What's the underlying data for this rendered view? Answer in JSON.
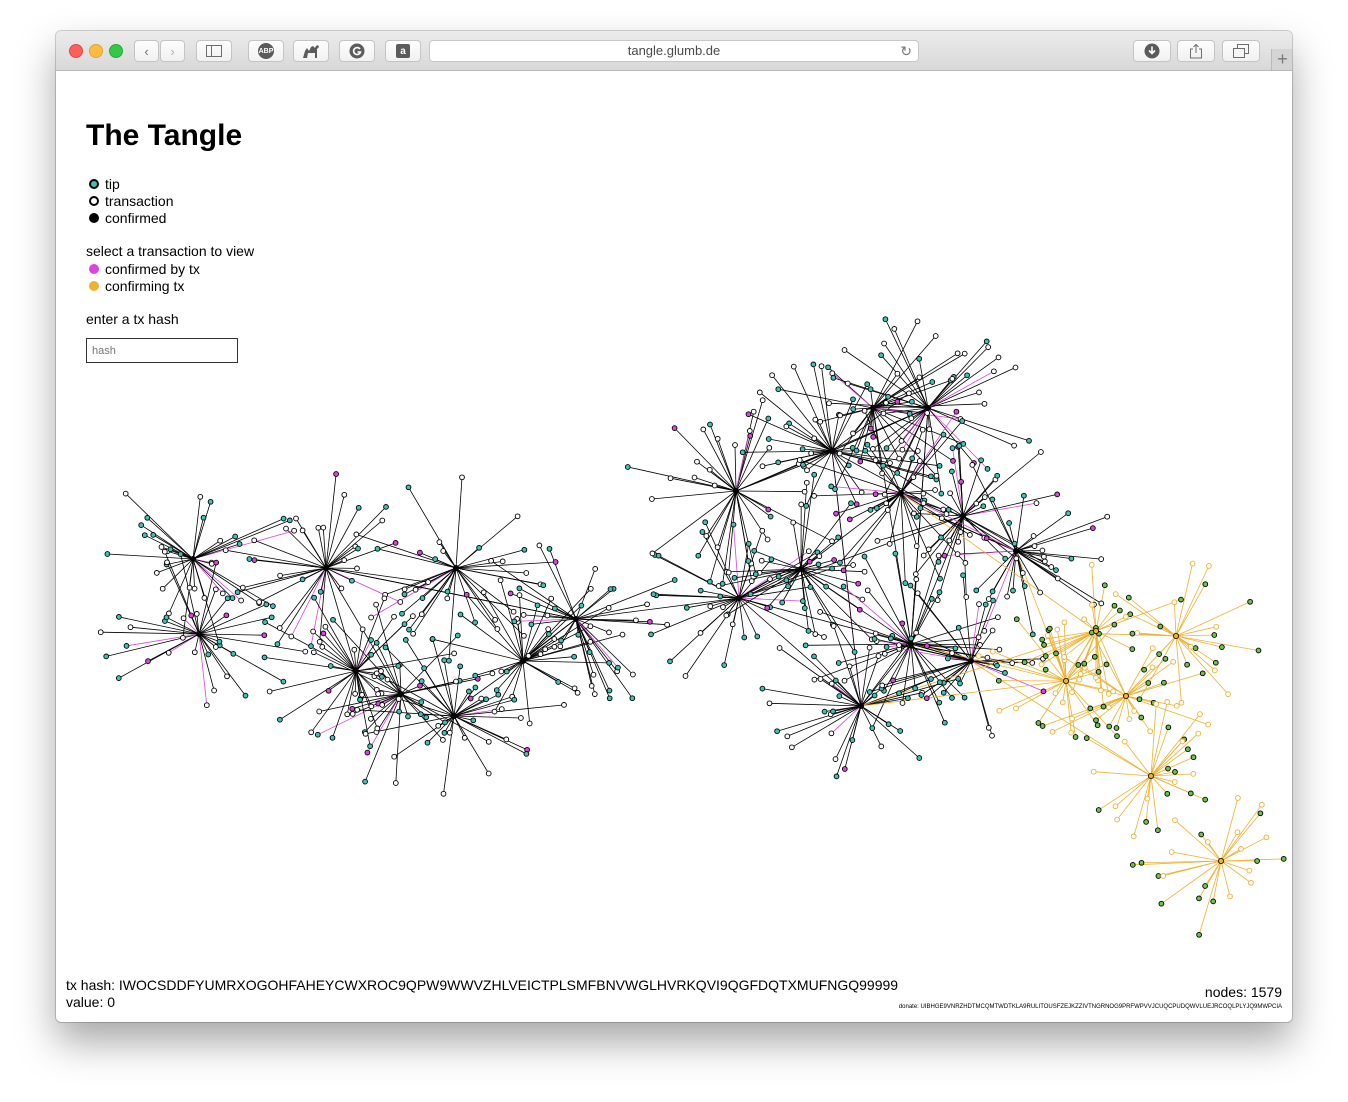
{
  "browser": {
    "url": "tangle.glumb.de",
    "buttons": {
      "back": "‹",
      "forward": "›",
      "adblock": "ABP",
      "amazon": "a",
      "newtab": "+"
    }
  },
  "page": {
    "title": "The Tangle",
    "legend": [
      {
        "label": "tip",
        "fill": "#3ec2b4",
        "stroke": "#000000"
      },
      {
        "label": "transaction",
        "fill": "#ffffff",
        "stroke": "#000000"
      },
      {
        "label": "confirmed",
        "fill": "#000000",
        "stroke": "#000000"
      }
    ],
    "select_prompt": "select a transaction to view",
    "highlight_legend": [
      {
        "label": "confirmed by tx",
        "color": "#dd44dd"
      },
      {
        "label": "confirming tx",
        "color": "#f0b030"
      }
    ],
    "hash_prompt": "enter a tx hash",
    "hash_input": {
      "placeholder": "hash",
      "value": ""
    },
    "tx_hash_line": "tx hash: IWOCSDDFYUMRXOGOHFAHEYCWXROC9QPW9WWVZHLVEICTPLSMFBNVWGLHVRKQVI9QGFDQTXMUFNGQ99999",
    "value_line": "value: 0",
    "nodes_line": "nodes: 1579",
    "donate_line": "donate: UIBHGE9VNRZHDTMCQMTWDTKLA9RULITOUSFZEJKZZIVTNGRNOG9PRFWPVVJCUQCPUDQWVLUEJRCOQLPLYJQ9MWPCIA"
  },
  "colors": {
    "tip": "#3ec2b4",
    "confirmed_by": "#dd44dd",
    "confirming": "#f0b030",
    "confirming_node": "#6cc24a",
    "edge": "#000000"
  }
}
